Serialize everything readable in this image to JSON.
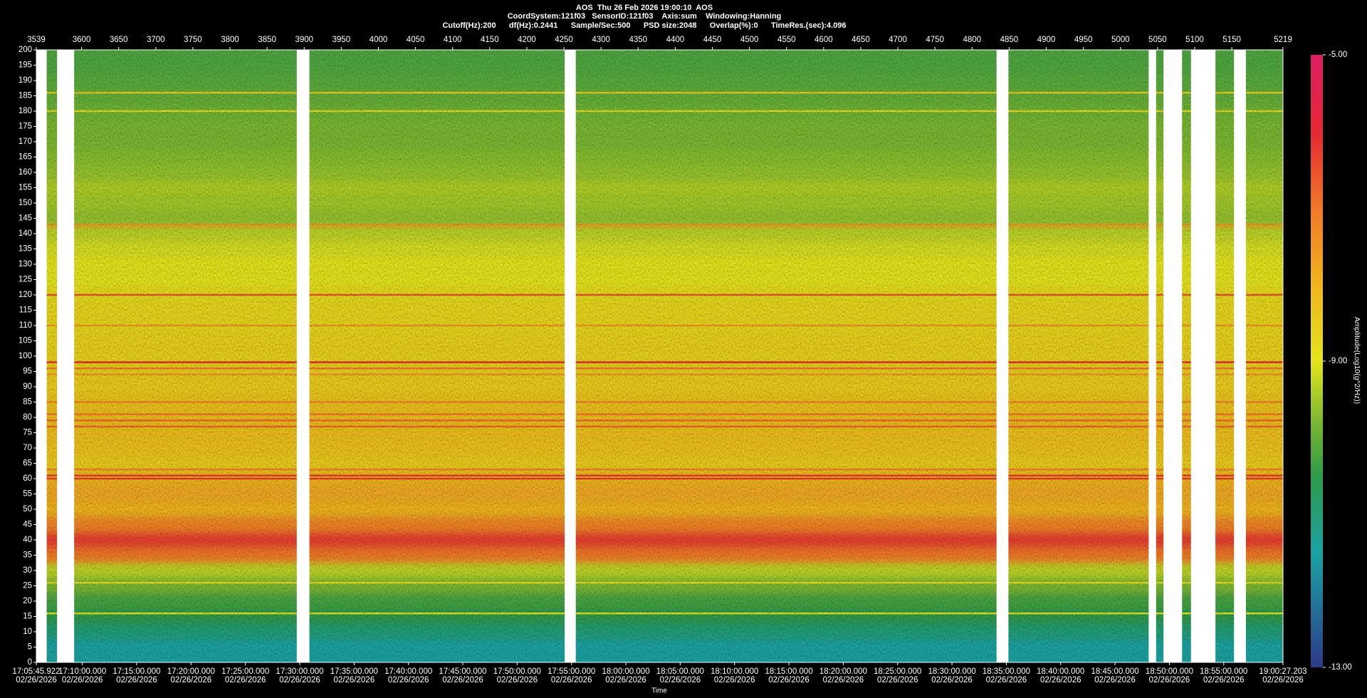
{
  "chart_data": {
    "type": "spectrogram",
    "title": "AOS  Thu 26 Feb 2026 19:00:10  AOS",
    "subtitle": [
      "CoordSystem:121f03   SensorID:121f03    Axis:sum    Windowing:Hanning",
      "Cutoff(Hz):200      df(Hz):0.2441      Sample/Sec:500      PSD size:2048      Overlap(%):0      TimeRes.(sec):4.096"
    ],
    "xlim": [
      3539,
      5219
    ],
    "xticks": [
      3539,
      3600,
      3650,
      3700,
      3750,
      3800,
      3850,
      3900,
      3950,
      4000,
      4050,
      4100,
      4150,
      4200,
      4250,
      4300,
      4350,
      4400,
      4450,
      4500,
      4550,
      4600,
      4650,
      4700,
      4750,
      4800,
      4850,
      4900,
      4950,
      5000,
      5050,
      5100,
      5150,
      5219
    ],
    "x2label": "Time",
    "x2lim": [
      61545.922,
      68427.203
    ],
    "x2ticks": [
      {
        "value": 61545.922,
        "label": "17:05:45.922",
        "date": "02/26/2026"
      },
      {
        "value": 61800,
        "label": "17:10:00.000",
        "date": "02/26/2026"
      },
      {
        "value": 62100,
        "label": "17:15:00.000",
        "date": "02/26/2026"
      },
      {
        "value": 62400,
        "label": "17:20:00.000",
        "date": "02/26/2026"
      },
      {
        "value": 62700,
        "label": "17:25:00.000",
        "date": "02/26/2026"
      },
      {
        "value": 63000,
        "label": "17:30:00.000",
        "date": "02/26/2026"
      },
      {
        "value": 63300,
        "label": "17:35:00.000",
        "date": "02/26/2026"
      },
      {
        "value": 63600,
        "label": "17:40:00.000",
        "date": "02/26/2026"
      },
      {
        "value": 63900,
        "label": "17:45:00.000",
        "date": "02/26/2026"
      },
      {
        "value": 64200,
        "label": "17:50:00.000",
        "date": "02/26/2026"
      },
      {
        "value": 64500,
        "label": "17:55:00.000",
        "date": "02/26/2026"
      },
      {
        "value": 64800,
        "label": "18:00:00.000",
        "date": "02/26/2026"
      },
      {
        "value": 65100,
        "label": "18:05:00.000",
        "date": "02/26/2026"
      },
      {
        "value": 65400,
        "label": "18:10:00.000",
        "date": "02/26/2026"
      },
      {
        "value": 65700,
        "label": "18:15:00.000",
        "date": "02/26/2026"
      },
      {
        "value": 66000,
        "label": "18:20:00.000",
        "date": "02/26/2026"
      },
      {
        "value": 66300,
        "label": "18:25:00.000",
        "date": "02/26/2026"
      },
      {
        "value": 66600,
        "label": "18:30:00.000",
        "date": "02/26/2026"
      },
      {
        "value": 66900,
        "label": "18:35:00.000",
        "date": "02/26/2026"
      },
      {
        "value": 67200,
        "label": "18:40:00.000",
        "date": "02/26/2026"
      },
      {
        "value": 67500,
        "label": "18:45:00.000",
        "date": "02/26/2026"
      },
      {
        "value": 67800,
        "label": "18:50:00.000",
        "date": "02/26/2026"
      },
      {
        "value": 68100,
        "label": "18:55:00.000",
        "date": "02/26/2026"
      },
      {
        "value": 68427.203,
        "label": "19:00:27.203",
        "date": "02/26/2026"
      }
    ],
    "ylim": [
      0,
      200
    ],
    "yticks": [
      0,
      5,
      10,
      15,
      20,
      25,
      30,
      35,
      40,
      45,
      50,
      55,
      60,
      65,
      70,
      75,
      80,
      85,
      90,
      95,
      100,
      105,
      110,
      115,
      120,
      125,
      130,
      135,
      140,
      145,
      150,
      155,
      160,
      165,
      170,
      175,
      180,
      185,
      190,
      195,
      200
    ],
    "frequencies": [
      0,
      5,
      10,
      15,
      20,
      25,
      30,
      35,
      40,
      45,
      50,
      55,
      60,
      65,
      70,
      75,
      80,
      85,
      90,
      95,
      100,
      105,
      110,
      115,
      120,
      125,
      130,
      135,
      140,
      145,
      150,
      155,
      160,
      165,
      170,
      175,
      180,
      185,
      190,
      195,
      200
    ],
    "values": [
      -11.5,
      -11.5,
      -11,
      -10.5,
      -10.3,
      -9.8,
      -9.3,
      -7,
      -6.3,
      -7.2,
      -8,
      -7.8,
      -8,
      -8.5,
      -8.3,
      -8.2,
      -8.2,
      -8.3,
      -8.5,
      -8.5,
      -8.6,
      -8.6,
      -8.7,
      -8.7,
      -8.8,
      -9,
      -9,
      -9.1,
      -9.3,
      -9.6,
      -9.5,
      -9.4,
      -9.6,
      -9.7,
      -9.8,
      -9.8,
      -9.9,
      -10,
      -10.1,
      -10.2,
      -10.2
    ],
    "lines": {
      "frequencies": [
        186,
        180,
        143,
        142,
        120,
        110,
        98,
        96,
        94,
        85,
        81,
        79,
        77,
        63,
        61,
        60,
        26,
        16
      ],
      "values": [
        -8.5,
        -8.8,
        -7.5,
        -7.8,
        -6.5,
        -7.5,
        -6,
        -7,
        -7.5,
        -7.2,
        -7,
        -6.8,
        -6.8,
        -7.2,
        -6.2,
        -6.2,
        -8.8,
        -9
      ]
    },
    "gaps": [
      [
        3539,
        3553
      ],
      [
        3567,
        3590
      ],
      [
        3890,
        3907
      ],
      [
        4251,
        4266
      ],
      [
        4833,
        4849
      ],
      [
        5038,
        5048
      ],
      [
        5058,
        5083
      ],
      [
        5095,
        5128
      ],
      [
        5153,
        5169
      ]
    ],
    "clabel": "Amplitude(Log10(g^2/Hz))",
    "clim": [
      -13,
      -5
    ],
    "cticks": [
      {
        "value": -5,
        "label": "-5.00"
      },
      {
        "value": -9,
        "label": "-9.00"
      },
      {
        "value": -13,
        "label": "-13.00"
      }
    ],
    "colormap": [
      {
        "value": -13,
        "color": "#2c3a8a"
      },
      {
        "value": -11.5,
        "color": "#1aa3a3"
      },
      {
        "value": -10.5,
        "color": "#2e9a4a"
      },
      {
        "value": -9.8,
        "color": "#7ab832"
      },
      {
        "value": -9,
        "color": "#e4e41e"
      },
      {
        "value": -8,
        "color": "#f0b41e"
      },
      {
        "value": -7,
        "color": "#f07828"
      },
      {
        "value": -6,
        "color": "#e42832"
      },
      {
        "value": -5,
        "color": "#dc1e64"
      }
    ]
  }
}
